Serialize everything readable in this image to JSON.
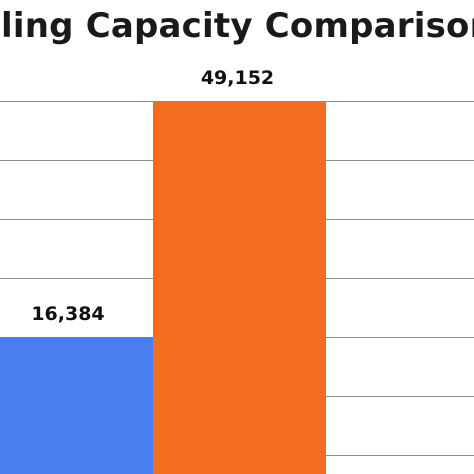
{
  "chart_data": {
    "type": "bar",
    "title": "ling Capacity Comparison",
    "categories": [
      "",
      ""
    ],
    "series": [
      {
        "values": [
          16384,
          49152
        ],
        "colors": [
          "#4a7ef0",
          "#f26d1f"
        ]
      }
    ],
    "data_labels": [
      "16,384",
      "49,152"
    ],
    "ylim": [
      0,
      57344
    ],
    "y_gridlines": [
      0,
      8192,
      16384,
      24576,
      32768,
      40960,
      49152,
      57344
    ],
    "grid": true,
    "legend": "none",
    "gridline_color": "#8c8c8c",
    "background_color": "#ffffff"
  }
}
